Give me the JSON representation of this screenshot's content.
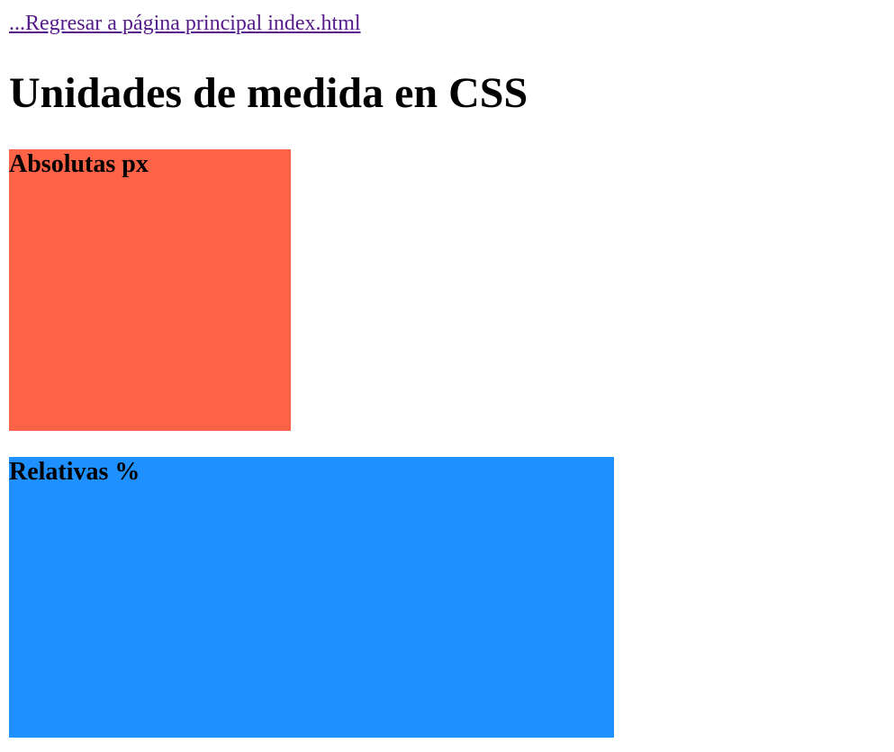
{
  "nav": {
    "back_link": "...Regresar a página principal index.html"
  },
  "header": {
    "title": "Unidades de medida en CSS"
  },
  "boxes": [
    {
      "label": "Absolutas px",
      "color": "#ff6347"
    },
    {
      "label": "Relativas %",
      "color": "#1e90ff"
    }
  ],
  "colors": {
    "link_visited": "#551a8b",
    "text": "#000000",
    "background": "#ffffff"
  }
}
